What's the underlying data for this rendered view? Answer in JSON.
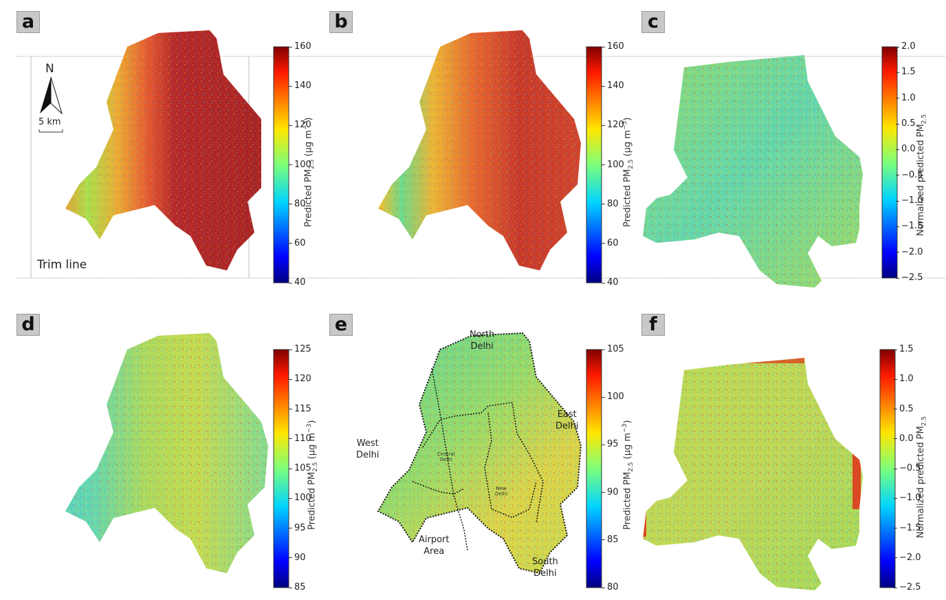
{
  "panels": [
    "a",
    "b",
    "c",
    "d",
    "e",
    "f"
  ],
  "colorbars": {
    "a": {
      "ticks": [
        "160",
        "140",
        "120",
        "100",
        "80",
        "60",
        "40"
      ],
      "label": "Predicted PM",
      "sub": "2.5",
      "unit": " (μg m",
      "sup": "−3",
      "close": ")"
    },
    "b": {
      "ticks": [
        "160",
        "140",
        "120",
        "100",
        "80",
        "60",
        "40"
      ],
      "label": "Predicted PM",
      "sub": "2.5",
      "unit": " (μg m",
      "sup": "−3",
      "close": ")"
    },
    "c": {
      "ticks": [
        "2.0",
        "1.5",
        "1.0",
        "0.5",
        "0.0",
        "−0.5",
        "−1.0",
        "−1.5",
        "−2.0",
        "−2.5"
      ],
      "label": "Normalized predicted PM",
      "sub": "2.5"
    },
    "d": {
      "ticks": [
        "125",
        "120",
        "115",
        "110",
        "105",
        "100",
        "95",
        "90",
        "85"
      ],
      "label": "Predicted PM",
      "sub": "2.5",
      "unit": " (μg m",
      "sup": "−3",
      "close": ")"
    },
    "e": {
      "ticks": [
        "105",
        "100",
        "95",
        "90",
        "85",
        "80"
      ],
      "label": "Predicted PM",
      "sub": "2.5",
      "unit": " (μg m",
      "sup": "−3",
      "close": ")"
    },
    "f": {
      "ticks": [
        "1.5",
        "1.0",
        "0.5",
        "0.0",
        "−0.5",
        "−1.0",
        "−1.5",
        "−2.0",
        "−2.5"
      ],
      "label": "Normalized predicted PM",
      "sub": "2.5"
    }
  },
  "annotations": {
    "north": "N",
    "scale": "5 km",
    "trim": "Trim line"
  },
  "regions": {
    "north": [
      "North",
      "Delhi"
    ],
    "east": [
      "East",
      "Delhi"
    ],
    "west": [
      "West",
      "Delhi"
    ],
    "airport": [
      "Airport",
      "Area"
    ],
    "south": [
      "South",
      "Delhi"
    ],
    "central": [
      "Central",
      "Delhi"
    ],
    "new": [
      "New",
      "Delhi"
    ]
  }
}
